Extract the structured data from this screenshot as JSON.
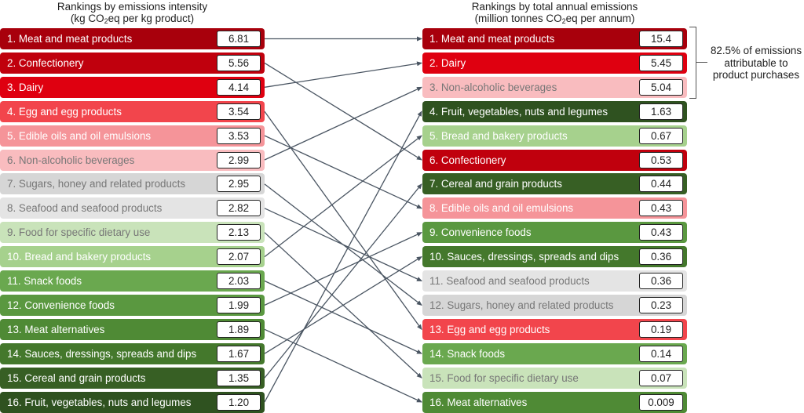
{
  "left_title": {
    "line1": "Rankings by emissions intensity",
    "line2_pre": "(kg CO",
    "line2_sub": "2",
    "line2_post": "eq per kg product)"
  },
  "right_title": {
    "line1": "Rankings by total annual emissions",
    "line2_pre": "(million tonnes CO",
    "line2_sub": "2",
    "line2_post": "eq per annum)"
  },
  "annotation": {
    "text_lines": [
      "82.5% of emissions",
      "attributable to",
      "product purchases"
    ]
  },
  "colors": {
    "dark_red": "#b0000a",
    "red": "#e00010",
    "bright_red": "#f2454c",
    "salmon": "#f59499",
    "light_pink": "#f9bcbf",
    "grey_dark": "#d6d6d6",
    "grey_light": "#e4e4e4",
    "pale_green": "#c8e2b8",
    "light_green": "#a6d18d",
    "green": "#6aa84f",
    "mid_green": "#4e8a34",
    "dark_green": "#3d6b26",
    "darkest_green": "#2f5220",
    "arrow": "#4a5562"
  },
  "chart_data": {
    "type": "table",
    "title": "Rankings of food categories by emissions intensity and total annual emissions",
    "left_column": {
      "header": "Rankings by emissions intensity (kg CO2eq per kg product)",
      "items": [
        {
          "rank": 1,
          "label": "1. Meat and meat products",
          "value": "6.81",
          "color": "#a8000c",
          "text": "#ffffff"
        },
        {
          "rank": 2,
          "label": "2. Confectionery",
          "value": "5.56",
          "color": "#c0000d",
          "text": "#ffffff"
        },
        {
          "rank": 3,
          "label": "3. Dairy",
          "value": "4.14",
          "color": "#df0010",
          "text": "#ffffff"
        },
        {
          "rank": 4,
          "label": "4. Egg and egg products",
          "value": "3.54",
          "color": "#f2454c",
          "text": "#ffffff"
        },
        {
          "rank": 5,
          "label": "5. Edible oils and oil emulsions",
          "value": "3.53",
          "color": "#f59499",
          "text": "#ffffff"
        },
        {
          "rank": 6,
          "label": "6. Non-alcoholic beverages",
          "value": "2.99",
          "color": "#f9bcbf",
          "text": "#777777"
        },
        {
          "rank": 7,
          "label": "7. Sugars, honey and related products",
          "value": "2.95",
          "color": "#d6d6d6",
          "text": "#777777"
        },
        {
          "rank": 8,
          "label": "8. Seafood and seafood products",
          "value": "2.82",
          "color": "#e4e4e4",
          "text": "#777777"
        },
        {
          "rank": 9,
          "label": "9. Food for specific dietary use",
          "value": "2.13",
          "color": "#c9e3ba",
          "text": "#777777"
        },
        {
          "rank": 10,
          "label": "10. Bread and bakery products",
          "value": "2.07",
          "color": "#a6d18d",
          "text": "#ffffff"
        },
        {
          "rank": 11,
          "label": "11. Snack foods",
          "value": "2.03",
          "color": "#6aa84f",
          "text": "#ffffff"
        },
        {
          "rank": 12,
          "label": "12. Convenience foods",
          "value": "1.99",
          "color": "#5a9840",
          "text": "#ffffff"
        },
        {
          "rank": 13,
          "label": "13. Meat alternatives",
          "value": "1.89",
          "color": "#4f8a35",
          "text": "#ffffff"
        },
        {
          "rank": 14,
          "label": "14. Sauces, dressings, spreads and dips",
          "value": "1.67",
          "color": "#44782c",
          "text": "#ffffff"
        },
        {
          "rank": 15,
          "label": "15. Cereal and grain products",
          "value": "1.35",
          "color": "#375f24",
          "text": "#ffffff"
        },
        {
          "rank": 16,
          "label": "16. Fruit, vegetables, nuts and legumes",
          "value": "1.20",
          "color": "#2f5220",
          "text": "#ffffff"
        }
      ]
    },
    "right_column": {
      "header": "Rankings by total annual emissions (million tonnes CO2eq per annum)",
      "items": [
        {
          "rank": 1,
          "label": "1. Meat and meat products",
          "value": "15.4",
          "color": "#a8000c",
          "text": "#ffffff"
        },
        {
          "rank": 2,
          "label": "2. Dairy",
          "value": "5.45",
          "color": "#df0010",
          "text": "#ffffff"
        },
        {
          "rank": 3,
          "label": "3. Non-alcoholic beverages",
          "value": "5.04",
          "color": "#f9bcbf",
          "text": "#777777"
        },
        {
          "rank": 4,
          "label": "4. Fruit, vegetables, nuts and legumes",
          "value": "1.63",
          "color": "#2f5220",
          "text": "#ffffff"
        },
        {
          "rank": 5,
          "label": "5. Bread and bakery products",
          "value": "0.67",
          "color": "#a6d18d",
          "text": "#ffffff"
        },
        {
          "rank": 6,
          "label": "6. Confectionery",
          "value": "0.53",
          "color": "#c0000d",
          "text": "#ffffff"
        },
        {
          "rank": 7,
          "label": "7. Cereal and grain products",
          "value": "0.44",
          "color": "#375f24",
          "text": "#ffffff"
        },
        {
          "rank": 8,
          "label": "8. Edible oils and oil emulsions",
          "value": "0.43",
          "color": "#f59499",
          "text": "#ffffff"
        },
        {
          "rank": 9,
          "label": "9. Convenience foods",
          "value": "0.43",
          "color": "#5a9840",
          "text": "#ffffff"
        },
        {
          "rank": 10,
          "label": "10. Sauces, dressings, spreads and dips",
          "value": "0.36",
          "color": "#44782c",
          "text": "#ffffff"
        },
        {
          "rank": 11,
          "label": "11. Seafood and seafood products",
          "value": "0.36",
          "color": "#e4e4e4",
          "text": "#777777"
        },
        {
          "rank": 12,
          "label": "12. Sugars, honey and related products",
          "value": "0.23",
          "color": "#d6d6d6",
          "text": "#777777"
        },
        {
          "rank": 13,
          "label": "13. Egg and egg products",
          "value": "0.19",
          "color": "#f2454c",
          "text": "#ffffff"
        },
        {
          "rank": 14,
          "label": "14. Snack foods",
          "value": "0.14",
          "color": "#6aa84f",
          "text": "#ffffff"
        },
        {
          "rank": 15,
          "label": "15. Food for specific dietary use",
          "value": "0.07",
          "color": "#c9e3ba",
          "text": "#777777"
        },
        {
          "rank": 16,
          "label": "16. Meat alternatives",
          "value": "0.009",
          "color": "#4f8a35",
          "text": "#ffffff"
        }
      ]
    },
    "links": [
      {
        "from": 1,
        "to": 1
      },
      {
        "from": 2,
        "to": 6
      },
      {
        "from": 3,
        "to": 2
      },
      {
        "from": 4,
        "to": 13
      },
      {
        "from": 5,
        "to": 8
      },
      {
        "from": 6,
        "to": 3
      },
      {
        "from": 7,
        "to": 12
      },
      {
        "from": 8,
        "to": 11
      },
      {
        "from": 9,
        "to": 15
      },
      {
        "from": 10,
        "to": 5
      },
      {
        "from": 11,
        "to": 14
      },
      {
        "from": 12,
        "to": 9
      },
      {
        "from": 13,
        "to": 16
      },
      {
        "from": 14,
        "to": 10
      },
      {
        "from": 15,
        "to": 7
      },
      {
        "from": 16,
        "to": 4
      }
    ],
    "bracket_annotation": "82.5% of emissions attributable to product purchases (right ranks 1-3)"
  }
}
